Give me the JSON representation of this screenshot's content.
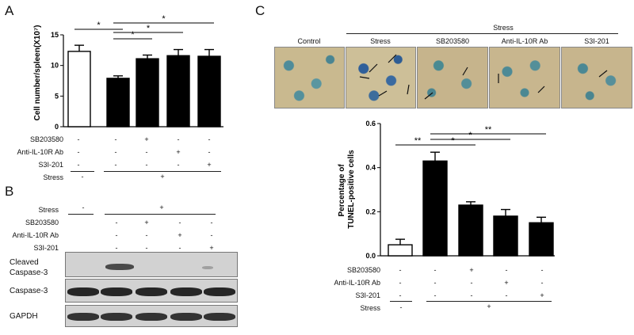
{
  "panels": {
    "a": "A",
    "b": "B",
    "c": "C"
  },
  "treatments": {
    "sb": "SB203580",
    "anti": "Anti-IL-10R Ab",
    "s3i": "S3I-201",
    "stress": "Stress",
    "plus": "+",
    "minus": "-"
  },
  "panel_a": {
    "rows": {
      "sb": [
        "-",
        "-",
        "+",
        "-",
        "-"
      ],
      "anti": [
        "-",
        "-",
        "-",
        "+",
        "-"
      ],
      "s3i": [
        "-",
        "-",
        "-",
        "-",
        "+"
      ],
      "stress": [
        "-",
        "+"
      ]
    },
    "sig": [
      "*",
      "*",
      "*",
      "*"
    ]
  },
  "panel_b": {
    "rows": {
      "stress": [
        "-",
        "+"
      ],
      "sb": [
        "-",
        "-",
        "+",
        "-",
        "-"
      ],
      "anti": [
        "-",
        "-",
        "-",
        "+",
        "-"
      ],
      "s3i": [
        "-",
        "-",
        "-",
        "-",
        "+"
      ]
    },
    "blots": {
      "cleaved_1": "Cleaved",
      "cleaved_2": "Caspase-3",
      "caspase": "Caspase-3",
      "gapdh": "GAPDH"
    }
  },
  "panel_c": {
    "images": {
      "stress_header": "Stress",
      "labels": [
        "Control",
        "Stress",
        "SB203580",
        "Anti-IL-10R Ab",
        "S3I-201"
      ]
    },
    "rows": {
      "sb": [
        "-",
        "-",
        "+",
        "-",
        "-"
      ],
      "anti": [
        "-",
        "-",
        "-",
        "+",
        "-"
      ],
      "s3i": [
        "-",
        "-",
        "-",
        "-",
        "+"
      ],
      "stress": [
        "-",
        "+"
      ]
    },
    "sig": [
      "**",
      "*",
      "*",
      "**"
    ]
  },
  "chart_data": [
    {
      "type": "bar",
      "ylabel": "Cell number/spleen(X10⁷)",
      "ylim": [
        0,
        15
      ],
      "yticks": [
        "0",
        "5",
        "10",
        "15"
      ],
      "categories": [
        "Control",
        "Stress",
        "Stress + SB203580",
        "Stress + Anti-IL-10R Ab",
        "Stress + S3I-201"
      ],
      "values": [
        12.3,
        7.9,
        11.1,
        11.6,
        11.5
      ],
      "errors": [
        1.0,
        0.4,
        0.6,
        1.0,
        1.1
      ],
      "colors": [
        "#ffffff",
        "#000000",
        "#000000",
        "#000000",
        "#000000"
      ]
    },
    {
      "type": "bar",
      "ylabel": "Percentage of TUNEL-positive cells",
      "ylim": [
        0,
        0.6
      ],
      "yticks": [
        "0.0",
        "0.2",
        "0.4",
        "0.6"
      ],
      "categories": [
        "Control",
        "Stress",
        "Stress + SB203580",
        "Stress + Anti-IL-10R Ab",
        "Stress + S3I-201"
      ],
      "values": [
        0.05,
        0.43,
        0.23,
        0.18,
        0.15
      ],
      "errors": [
        0.025,
        0.04,
        0.015,
        0.03,
        0.025
      ],
      "colors": [
        "#ffffff",
        "#000000",
        "#000000",
        "#000000",
        "#000000"
      ]
    }
  ]
}
